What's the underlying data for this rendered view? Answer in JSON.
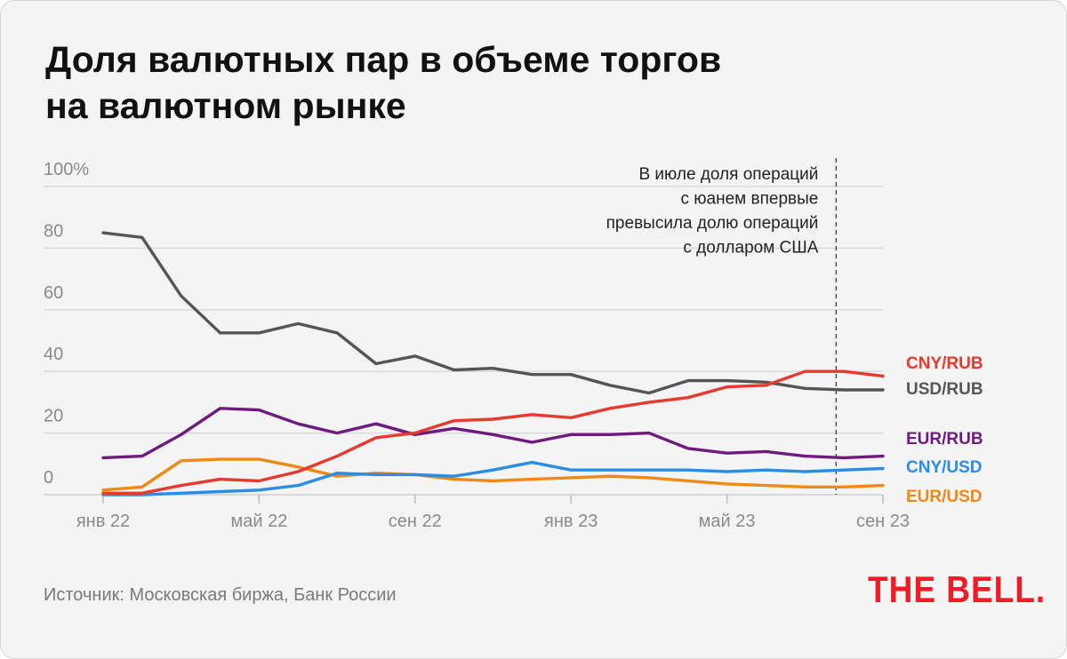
{
  "title_lines": [
    "Доля валютных пар в объеме торгов",
    "на валютном рынке"
  ],
  "source": "Источник: Московская биржа, Банк России",
  "logo": "THE BELL.",
  "colors": {
    "background": "#f4f4f4",
    "grid": "#d9d9d9",
    "axis_text": "#8a8a8a",
    "CNY/RUB": "#e63a2e",
    "USD/RUB": "#555555",
    "EUR/RUB": "#6e1a7e",
    "CNY/USD": "#2b8ce6",
    "EUR/USD": "#ee8a14",
    "logo": "#ee1c25"
  },
  "chart_data": {
    "type": "line",
    "title": "Доля валютных пар в объеме торгов на валютном рынке",
    "xlabel": "",
    "ylabel": "",
    "ylim": [
      0,
      100
    ],
    "y_ticks": [
      0,
      20,
      40,
      60,
      80,
      100
    ],
    "y_tick_labels": [
      "0",
      "20",
      "40",
      "60",
      "80",
      "100%"
    ],
    "x_tick_labels": [
      "янв 22",
      "май 22",
      "сен 22",
      "янв 23",
      "май 23",
      "сен 23"
    ],
    "x_tick_index": [
      0,
      4,
      8,
      12,
      16,
      20
    ],
    "x": [
      "янв 22",
      "фев 22",
      "мар 22",
      "апр 22",
      "май 22",
      "июн 22",
      "июл 22",
      "авг 22",
      "сен 22",
      "окт 22",
      "ноя 22",
      "дек 22",
      "янв 23",
      "фев 23",
      "мар 23",
      "апр 23",
      "май 23",
      "июн 23",
      "июл 23",
      "авг 23",
      "сен 23"
    ],
    "grid": true,
    "series": [
      {
        "name": "USD/RUB",
        "values": [
          85,
          83.5,
          64.5,
          52.5,
          52.5,
          55.5,
          52.5,
          42.5,
          45,
          40.5,
          41,
          39,
          39,
          35.5,
          33,
          37,
          37,
          36.5,
          34.5,
          34,
          34
        ]
      },
      {
        "name": "CNY/RUB",
        "values": [
          0.5,
          0.5,
          3,
          5,
          4.5,
          7.5,
          12.5,
          18.5,
          20,
          24,
          24.5,
          26,
          25,
          28,
          30,
          31.5,
          35,
          35.5,
          40,
          40,
          38.5
        ]
      },
      {
        "name": "EUR/RUB",
        "values": [
          12,
          12.5,
          19.5,
          28,
          27.5,
          23,
          20,
          23,
          19.5,
          21.5,
          19.5,
          17,
          19.5,
          19.5,
          20,
          15,
          13.5,
          14,
          12.5,
          12,
          12.5
        ]
      },
      {
        "name": "CNY/USD",
        "values": [
          0,
          0,
          0.5,
          1,
          1.5,
          3,
          7,
          6.5,
          6.5,
          6,
          8,
          10.5,
          8,
          8,
          8,
          8,
          7.5,
          8,
          7.5,
          8,
          8.5
        ]
      },
      {
        "name": "EUR/USD",
        "values": [
          1.5,
          2.5,
          11,
          11.5,
          11.5,
          9,
          6,
          7,
          6.5,
          5,
          4.5,
          5,
          5.5,
          6,
          5.5,
          4.5,
          3.5,
          3,
          2.5,
          2.5,
          3
        ]
      }
    ],
    "legend_order": [
      "CNY/RUB",
      "USD/RUB",
      "EUR/RUB",
      "CNY/USD",
      "EUR/USD"
    ],
    "legend_placement": "right",
    "annotation": {
      "at_index": 18.8,
      "lines": [
        "В июле доля операций",
        "с юанем впервые",
        "превысила долю операций",
        "с долларом США"
      ]
    }
  }
}
